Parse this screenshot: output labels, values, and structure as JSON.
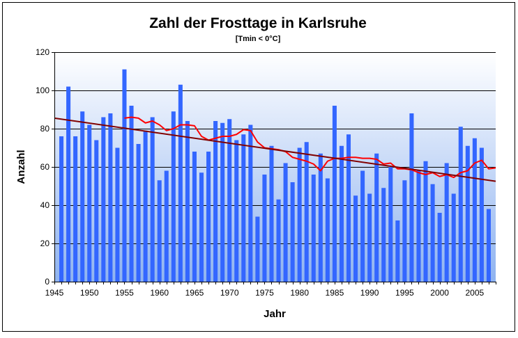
{
  "chart_data": {
    "type": "bar",
    "title": "Zahl der Frosttage in Karlsruhe",
    "subtitle": "[Tmin < 0°C]",
    "xlabel": "Jahr",
    "ylabel": "Anzahl",
    "xlim": [
      1945,
      2008
    ],
    "ylim": [
      0,
      120
    ],
    "grid": true,
    "legend": "none",
    "x_ticks": [
      "1945",
      "1950",
      "1955",
      "1960",
      "1965",
      "1970",
      "1975",
      "1980",
      "1985",
      "1990",
      "1995",
      "2000",
      "2005"
    ],
    "y_ticks": [
      "0",
      "20",
      "40",
      "60",
      "80",
      "100",
      "120"
    ],
    "colors": {
      "bars": "#3366ff",
      "moving_average": "#ff0000",
      "trend": "#800000",
      "plot_top": "#ffffff",
      "plot_bottom": "#8fb3f0"
    },
    "series": [
      {
        "type": "bar",
        "x": [
          1946,
          1947,
          1948,
          1949,
          1950,
          1951,
          1952,
          1953,
          1954,
          1955,
          1956,
          1957,
          1958,
          1959,
          1960,
          1961,
          1962,
          1963,
          1964,
          1965,
          1966,
          1967,
          1968,
          1969,
          1970,
          1971,
          1972,
          1973,
          1974,
          1975,
          1976,
          1977,
          1978,
          1979,
          1980,
          1981,
          1982,
          1983,
          1984,
          1985,
          1986,
          1987,
          1988,
          1989,
          1990,
          1991,
          1992,
          1993,
          1994,
          1995,
          1996,
          1997,
          1998,
          1999,
          2000,
          2001,
          2002,
          2003,
          2004,
          2005,
          2006,
          2007
        ],
        "values": [
          76,
          102,
          76,
          89,
          82,
          74,
          86,
          88,
          70,
          111,
          92,
          72,
          79,
          86,
          53,
          58,
          89,
          103,
          84,
          68,
          57,
          68,
          84,
          83,
          85,
          74,
          77,
          82,
          34,
          56,
          71,
          43,
          62,
          52,
          70,
          73,
          56,
          67,
          54,
          92,
          71,
          77,
          45,
          58,
          46,
          67,
          49,
          60,
          32,
          53,
          88,
          58,
          63,
          51,
          36,
          62,
          46,
          81,
          71,
          75,
          70,
          38
        ]
      },
      {
        "type": "line",
        "x": [
          1955,
          1956,
          1957,
          1958,
          1959,
          1960,
          1961,
          1962,
          1963,
          1964,
          1965,
          1966,
          1967,
          1968,
          1969,
          1970,
          1971,
          1972,
          1973,
          1974,
          1975,
          1976,
          1977,
          1978,
          1979,
          1980,
          1981,
          1982,
          1983,
          1984,
          1985,
          1986,
          1987,
          1988,
          1989,
          1990,
          1991,
          1992,
          1993,
          1994,
          1995,
          1996,
          1997,
          1998,
          1999,
          2000,
          2001,
          2002,
          2003,
          2004,
          2005,
          2006,
          2007,
          2008
        ],
        "values": [
          85.5,
          86,
          85.5,
          83,
          84,
          82,
          79,
          80,
          82,
          82,
          81.5,
          76,
          74,
          75,
          76,
          76,
          77,
          79.5,
          79,
          73,
          70,
          69.5,
          69,
          68,
          65,
          64,
          63,
          61.5,
          58,
          63,
          64.5,
          64.5,
          65,
          65,
          64.5,
          64.5,
          64,
          61.5,
          62,
          59,
          59,
          58.5,
          57,
          56,
          57,
          55,
          56,
          54.5,
          57,
          58,
          62,
          63.5,
          59,
          59.5
        ]
      },
      {
        "type": "line",
        "x": [
          1945,
          2008
        ],
        "values": [
          85.5,
          52.5
        ]
      }
    ]
  }
}
